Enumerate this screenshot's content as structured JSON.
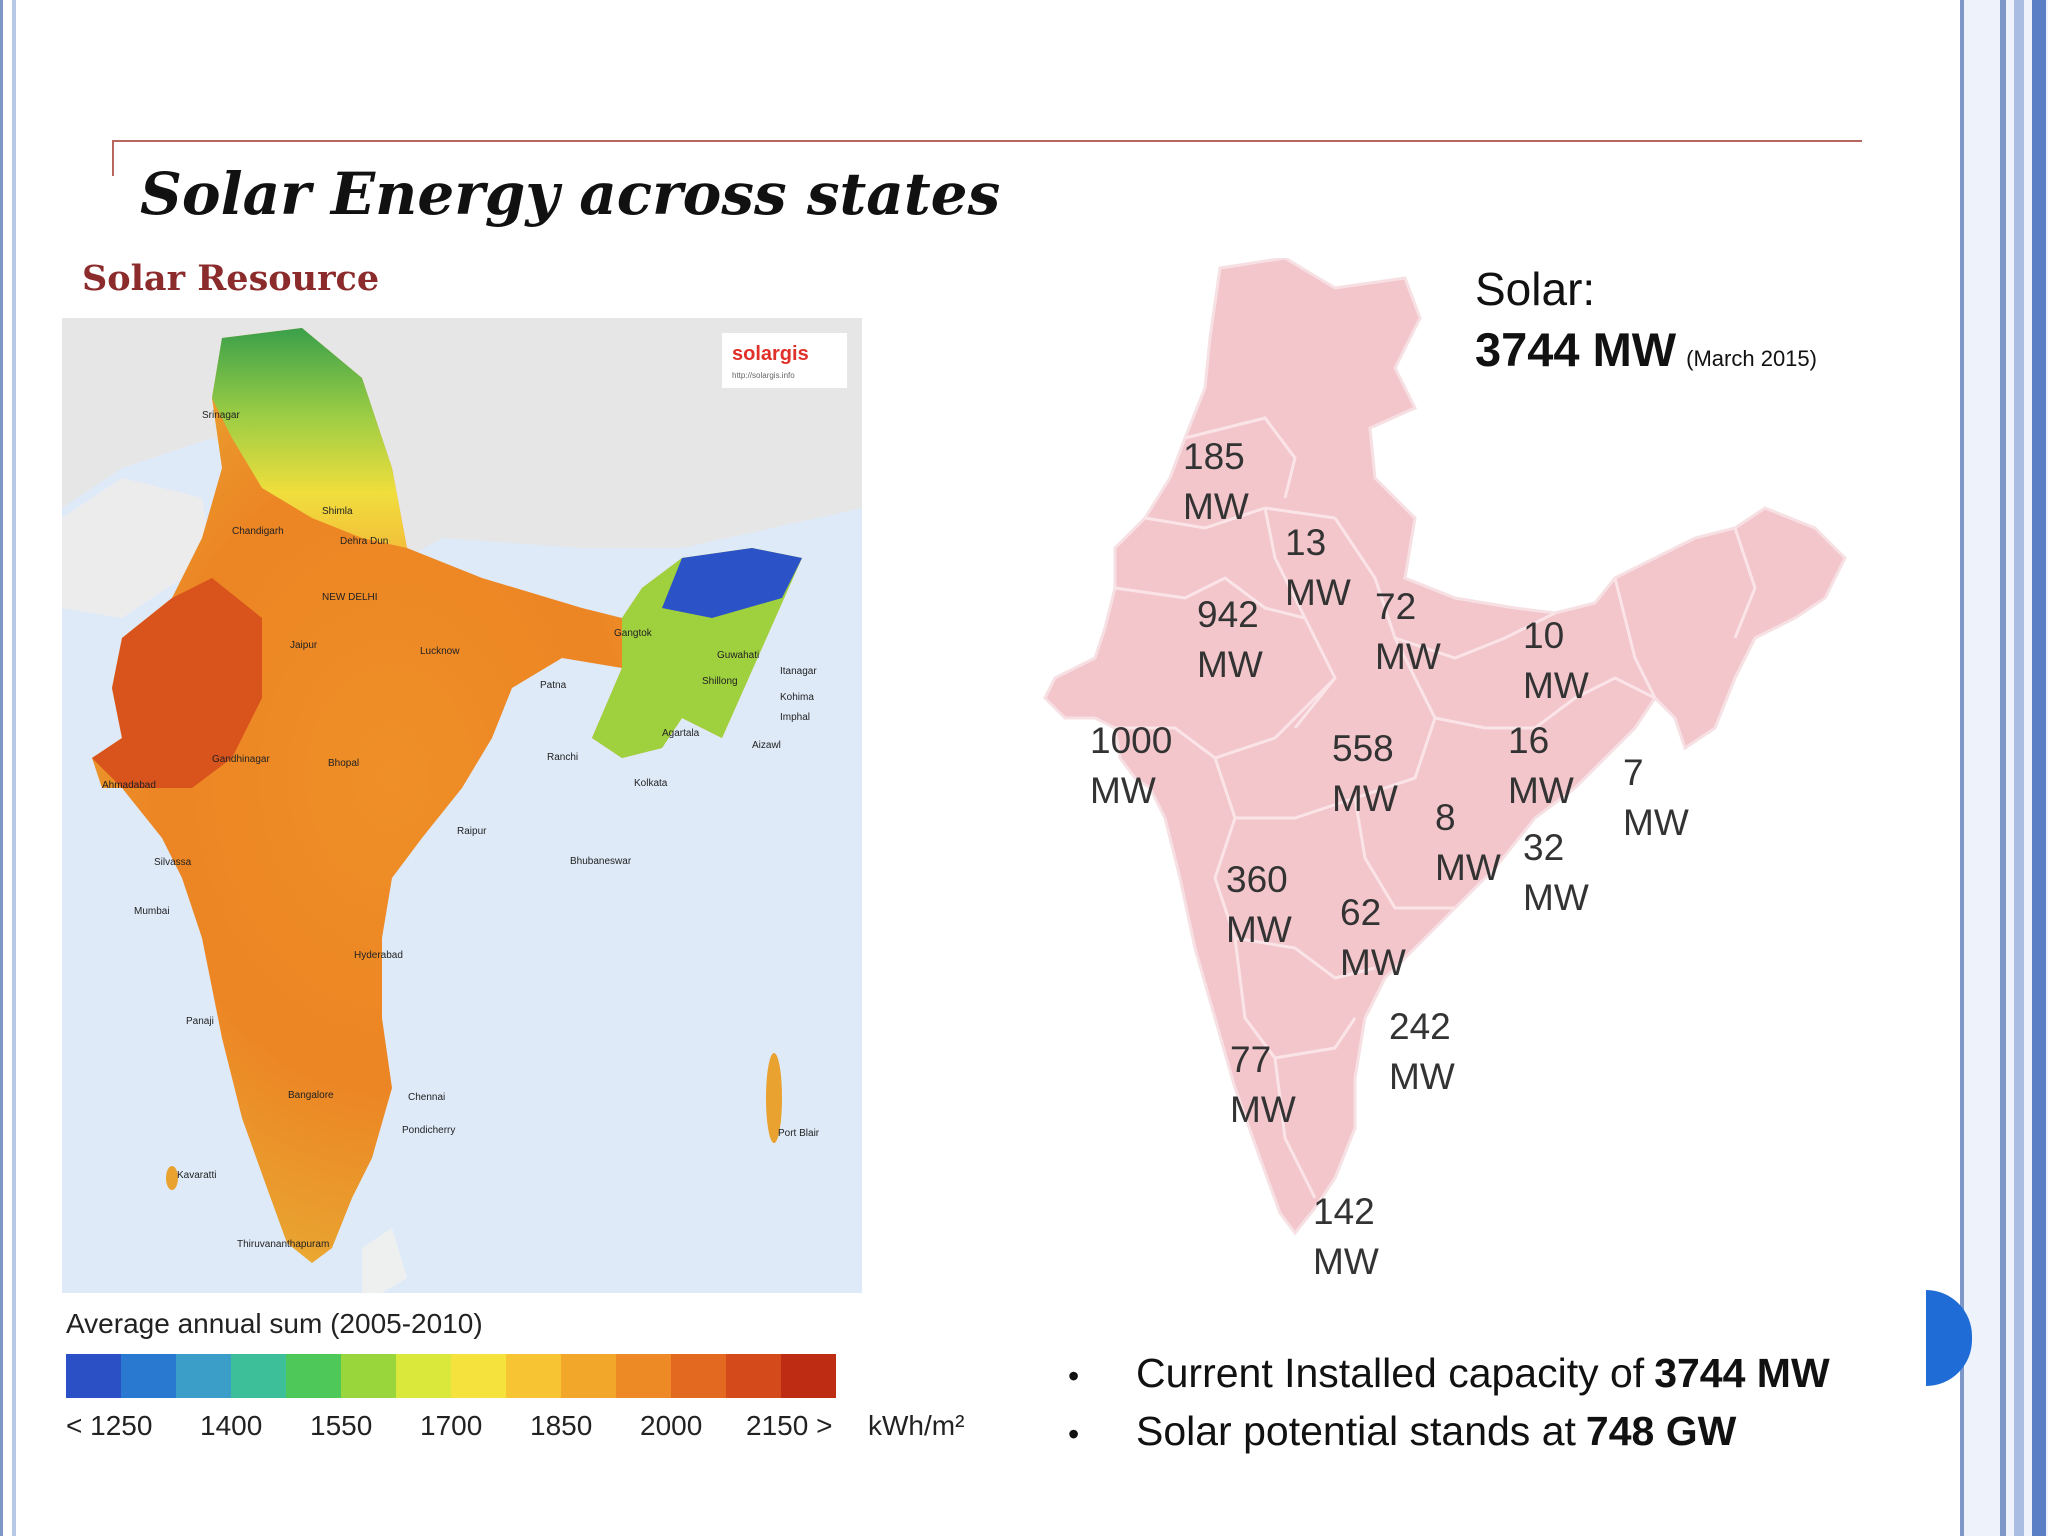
{
  "slide": {
    "title": "Solar Energy across states",
    "subtitle": "Solar Resource"
  },
  "left_map": {
    "brand": "solargis",
    "brand_url": "http://solargis.info",
    "cities": [
      {
        "name": "Srinagar"
      },
      {
        "name": "Shimla"
      },
      {
        "name": "Chandigarh"
      },
      {
        "name": "Dehra Dun"
      },
      {
        "name": "NEW DELHI"
      },
      {
        "name": "Jaipur"
      },
      {
        "name": "Lucknow"
      },
      {
        "name": "Patna"
      },
      {
        "name": "Gangtok"
      },
      {
        "name": "Guwahati"
      },
      {
        "name": "Itanagar"
      },
      {
        "name": "Shillong"
      },
      {
        "name": "Kohima"
      },
      {
        "name": "Imphal"
      },
      {
        "name": "Agartala"
      },
      {
        "name": "Aizawl"
      },
      {
        "name": "Gandhinagar"
      },
      {
        "name": "Ahmadabad"
      },
      {
        "name": "Bhopal"
      },
      {
        "name": "Ranchi"
      },
      {
        "name": "Kolkata"
      },
      {
        "name": "Raipur"
      },
      {
        "name": "Bhubaneswar"
      },
      {
        "name": "Silvassa"
      },
      {
        "name": "Mumbai"
      },
      {
        "name": "Hyderabad"
      },
      {
        "name": "Panaji"
      },
      {
        "name": "Bangalore"
      },
      {
        "name": "Chennai"
      },
      {
        "name": "Pondicherry"
      },
      {
        "name": "Kavaratti"
      },
      {
        "name": "Thiruvananthapuram"
      },
      {
        "name": "Port Blair"
      }
    ],
    "legend": {
      "title": "Average annual sum (2005-2010)",
      "colors": [
        "#2b4fc4",
        "#2a79d0",
        "#3a9ec8",
        "#3dbf9a",
        "#4fc85a",
        "#98d63c",
        "#d9e83a",
        "#f5e23c",
        "#f7c433",
        "#f2a62a",
        "#ee8a25",
        "#e2691f",
        "#d44a1a",
        "#bf2c14"
      ],
      "ticks": [
        "< 1250",
        "1400",
        "1550",
        "1700",
        "1850",
        "2000",
        "2150 >"
      ],
      "unit": "kWh/m²"
    }
  },
  "right_map": {
    "heading": "Solar:",
    "total": "3744 MW",
    "date": "(March 2015)",
    "labels": [
      {
        "value": "185",
        "unit": "MW"
      },
      {
        "value": "13",
        "unit": "MW"
      },
      {
        "value": "942",
        "unit": "MW"
      },
      {
        "value": "72",
        "unit": "MW"
      },
      {
        "value": "10",
        "unit": "MW"
      },
      {
        "value": "1000",
        "unit": "MW"
      },
      {
        "value": "558",
        "unit": "MW"
      },
      {
        "value": "16",
        "unit": "MW"
      },
      {
        "value": "7",
        "unit": "MW"
      },
      {
        "value": "8",
        "unit": "MW"
      },
      {
        "value": "32",
        "unit": "MW"
      },
      {
        "value": "360",
        "unit": "MW"
      },
      {
        "value": "62",
        "unit": "MW"
      },
      {
        "value": "242",
        "unit": "MW"
      },
      {
        "value": "77",
        "unit": "MW"
      },
      {
        "value": "142",
        "unit": "MW"
      }
    ]
  },
  "bullets": [
    {
      "text": "Current Installed capacity of",
      "bold": "3744 MW"
    },
    {
      "text": "Solar potential stands at",
      "bold": "748 GW"
    }
  ],
  "theme": {
    "frame": "#7d97c9",
    "title_rule": "#b9665e",
    "subtitle": "#8c2b2b",
    "map_pink": "#f2c6cb",
    "sea": "#dfeaf8",
    "accent": "#1f6cd6"
  }
}
